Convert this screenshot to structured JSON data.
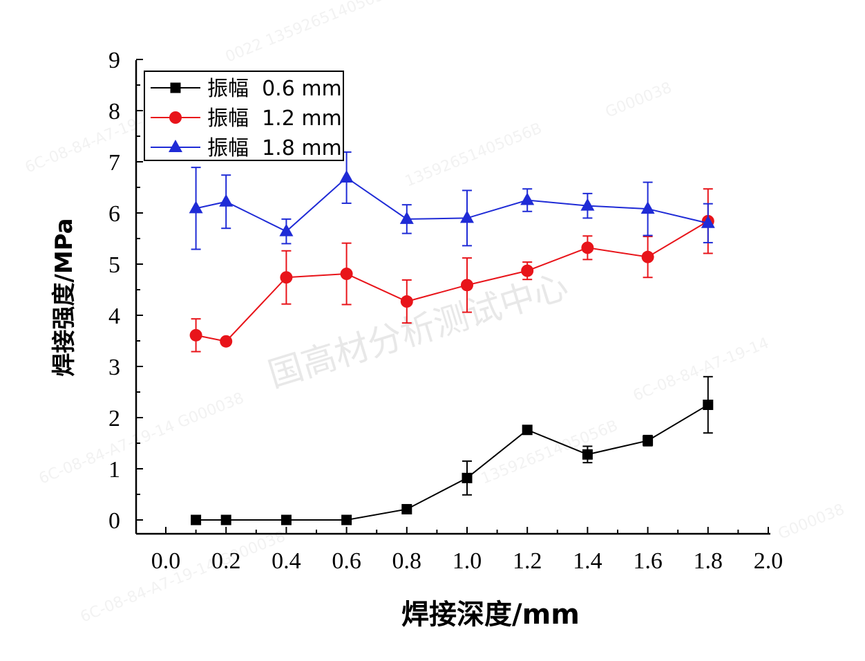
{
  "chart_data": {
    "type": "line",
    "xlabel": "焊接深度/mm",
    "ylabel": "焊接强度/MPa",
    "xlim": [
      -0.1,
      2.0
    ],
    "ylim": [
      -0.3,
      9
    ],
    "x_ticks": [
      "0.0",
      "0.2",
      "0.4",
      "0.6",
      "0.8",
      "1.0",
      "1.2",
      "1.4",
      "1.6",
      "1.8",
      "2.0"
    ],
    "y_ticks": [
      "0",
      "1",
      "2",
      "3",
      "4",
      "5",
      "6",
      "7",
      "8",
      "9"
    ],
    "legend_position": "top-left",
    "grid": false,
    "series": [
      {
        "name": "振幅  0.6 mm",
        "color": "#000000",
        "marker": "square",
        "x": [
          0.1,
          0.2,
          0.4,
          0.6,
          0.8,
          1.0,
          1.2,
          1.4,
          1.6,
          1.8
        ],
        "y": [
          0,
          0,
          0,
          0,
          0.21,
          0.82,
          1.76,
          1.28,
          1.55,
          2.25
        ],
        "err": [
          0,
          0,
          0,
          0,
          0,
          0.33,
          0,
          0.16,
          0.1,
          0.55
        ]
      },
      {
        "name": "振幅  1.2 mm",
        "color": "#e8141a",
        "marker": "circle",
        "x": [
          0.1,
          0.2,
          0.4,
          0.6,
          0.8,
          1.0,
          1.2,
          1.4,
          1.6,
          1.8
        ],
        "y": [
          3.61,
          3.49,
          4.74,
          4.81,
          4.27,
          4.59,
          4.87,
          5.32,
          5.14,
          5.84
        ],
        "err": [
          0.32,
          0,
          0.52,
          0.6,
          0.42,
          0.53,
          0.17,
          0.23,
          0.4,
          0.63
        ]
      },
      {
        "name": "振幅  1.8 mm",
        "color": "#1f2bd6",
        "marker": "triangle",
        "x": [
          0.1,
          0.2,
          0.4,
          0.6,
          0.8,
          1.0,
          1.2,
          1.4,
          1.6,
          1.8
        ],
        "y": [
          6.09,
          6.22,
          5.64,
          6.69,
          5.88,
          5.9,
          6.25,
          6.14,
          6.08,
          5.8
        ],
        "err": [
          0.8,
          0.52,
          0.24,
          0.5,
          0.28,
          0.54,
          0.22,
          0.24,
          0.52,
          0.38
        ]
      }
    ]
  },
  "watermark": {
    "main_text": "国高材分析测试中心",
    "faint_lines": [
      "6C-08-84-A7-19-14",
      "6C-08-84-A7-19-14  G000038",
      "13592651405056B",
      "G000038",
      "0022  13592651405056B",
      "6C-08-84-A7-19-14  G000038",
      "13592651405056B",
      "6C-08-84-A7-19-14",
      "G000038"
    ]
  }
}
